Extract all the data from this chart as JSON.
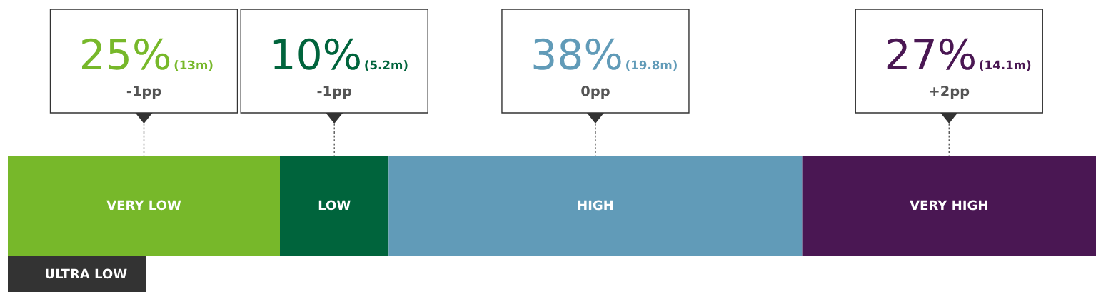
{
  "chart_data": {
    "type": "bar",
    "orientation": "horizontal",
    "stacked": true,
    "categories": [
      null
    ],
    "tick_labels": false,
    "legend": false,
    "series": [
      {
        "name": "VERY LOW",
        "color": "#77b82a",
        "values": [
          25
        ],
        "value_labels": [
          "25%"
        ]
      },
      {
        "name": "LOW",
        "color": "#00643c",
        "values": [
          10
        ],
        "value_labels": [
          "10%"
        ]
      },
      {
        "name": "HIGH",
        "color": "#619bb8",
        "values": [
          38
        ],
        "value_labels": [
          "38%"
        ]
      },
      {
        "name": "VERY HIGH",
        "color": "#4a1753",
        "values": [
          27
        ],
        "value_labels": [
          "27%"
        ]
      }
    ],
    "annotations": [
      "(13m)",
      "-1pp",
      "(5.2m)",
      "-1pp",
      "(19.8m)",
      "0pp",
      "(14.1m)",
      "+2pp",
      "ULTRA LOW"
    ]
  }
}
